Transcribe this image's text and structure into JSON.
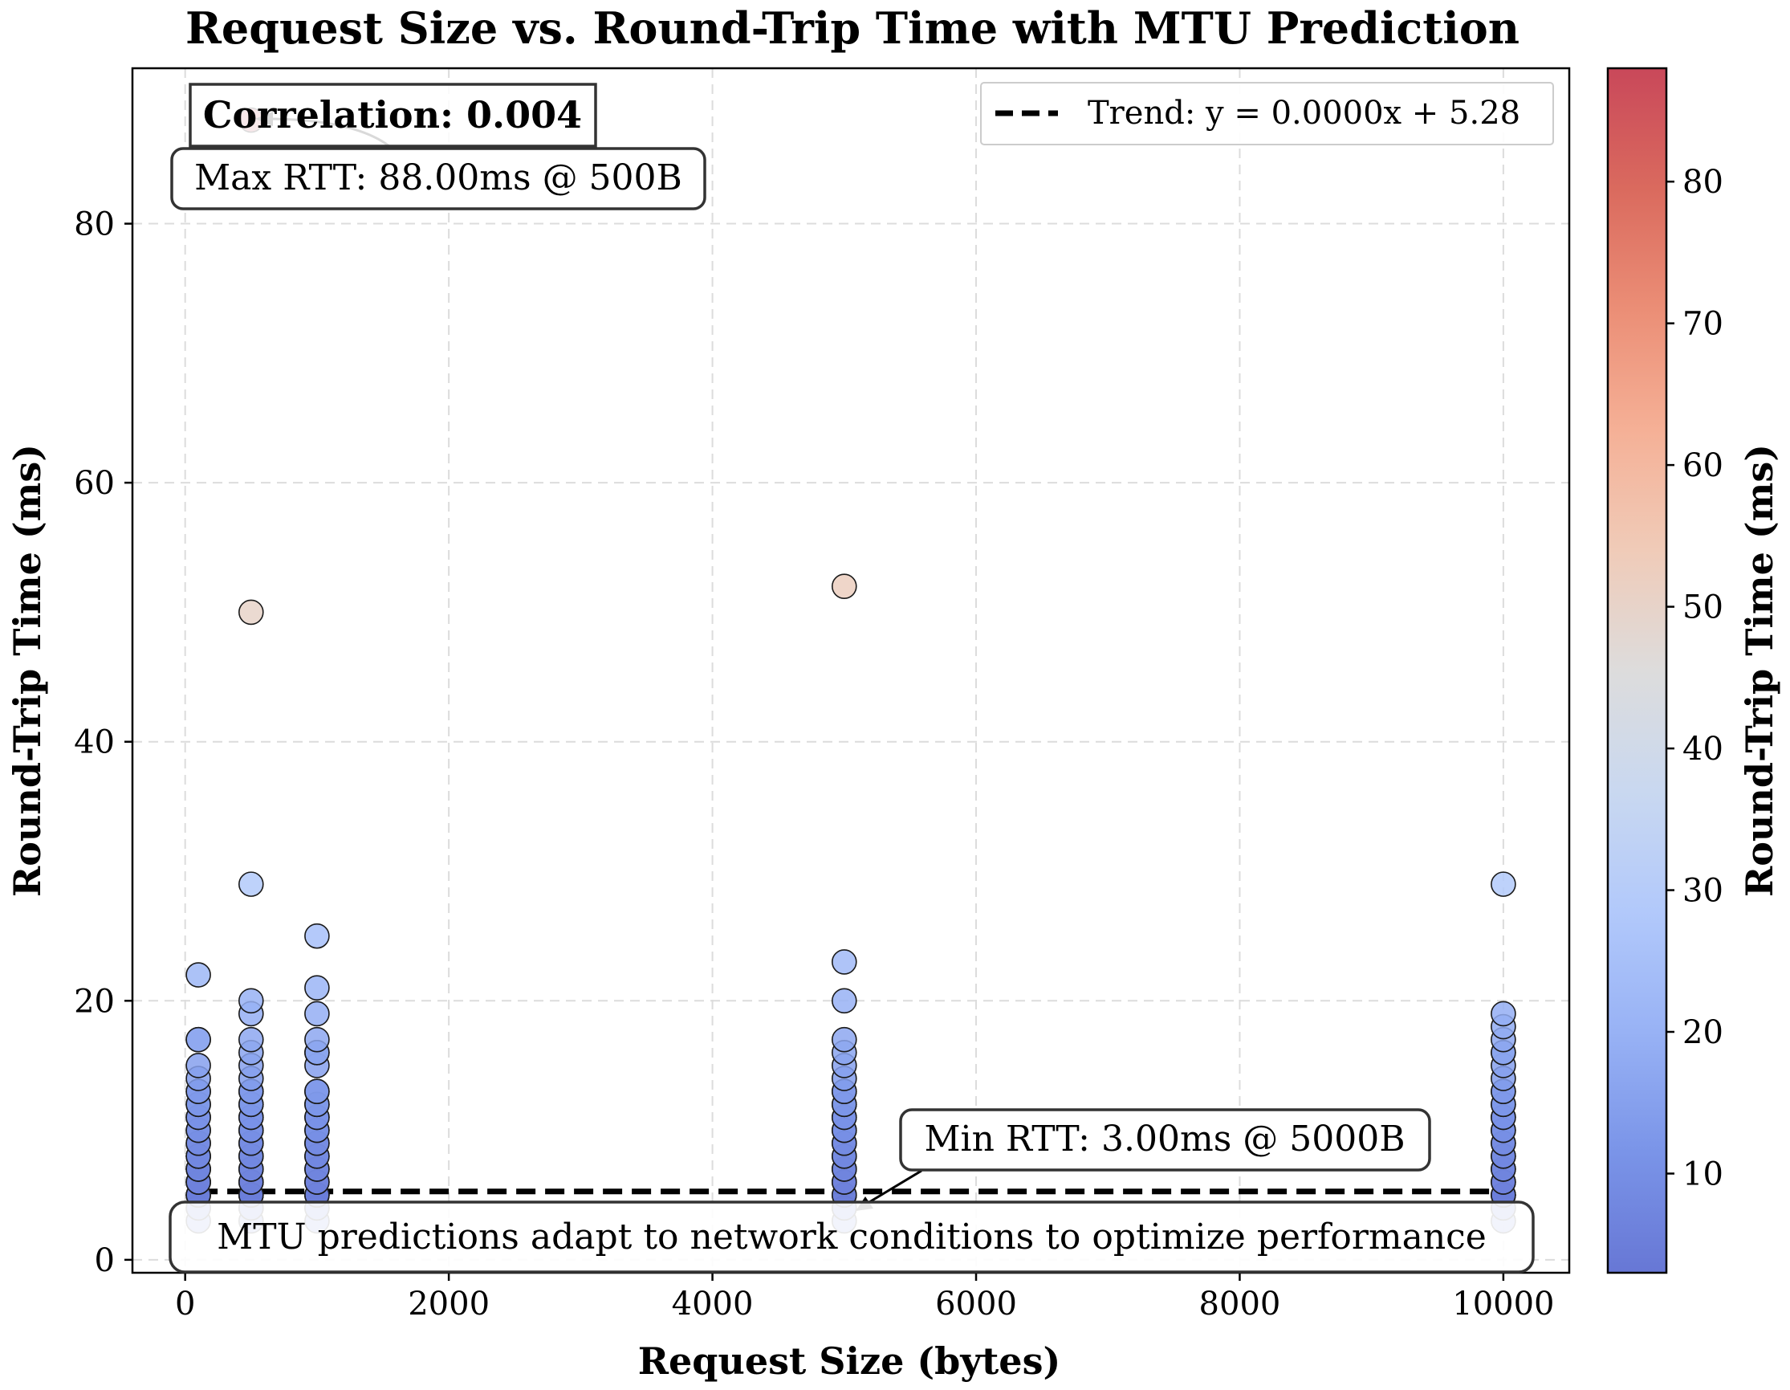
{
  "chart_data": {
    "type": "scatter",
    "title": "Request Size vs. Round-Trip Time with MTU Prediction",
    "xlabel": "Request Size (bytes)",
    "ylabel": "Round-Trip Time (ms)",
    "xlim": [
      -400,
      10500
    ],
    "ylim": [
      -1,
      92
    ],
    "xticks": [
      0,
      2000,
      4000,
      6000,
      8000,
      10000
    ],
    "yticks": [
      0,
      20,
      40,
      60,
      80
    ],
    "grid": true,
    "colorbar": {
      "label": "Round-Trip Time (ms)",
      "range": [
        3,
        88
      ],
      "ticks": [
        10,
        20,
        30,
        40,
        50,
        60,
        70,
        80
      ],
      "colormap": "coolwarm"
    },
    "legend": {
      "position": "top-right",
      "entries": [
        {
          "label": "Trend: y = 0.0000x + 5.28",
          "style": "dashed",
          "color": "#000000"
        }
      ]
    },
    "trend": {
      "slope": 0.0,
      "intercept": 5.28,
      "x_range": [
        100,
        10000
      ]
    },
    "annotations": {
      "correlation": "Correlation: 0.004",
      "max_rtt": "Max RTT: 88.00ms @ 500B",
      "min_rtt": "Min RTT: 3.00ms @ 5000B",
      "footer": "MTU predictions adapt to network conditions to optimize performance"
    },
    "series": [
      {
        "x": 100,
        "y": [
          3,
          4,
          4,
          5,
          5,
          5,
          6,
          6,
          6,
          7,
          7,
          7,
          8,
          8,
          8,
          9,
          9,
          10,
          10,
          11,
          11,
          12,
          12,
          13,
          13,
          14,
          15,
          17,
          17,
          22
        ]
      },
      {
        "x": 500,
        "y": [
          3,
          4,
          4,
          5,
          5,
          5,
          6,
          6,
          7,
          7,
          8,
          8,
          9,
          9,
          10,
          10,
          11,
          11,
          12,
          12,
          13,
          13,
          14,
          15,
          16,
          17,
          19,
          20,
          29,
          50,
          88
        ]
      },
      {
        "x": 1000,
        "y": [
          3,
          4,
          4,
          5,
          5,
          5,
          6,
          6,
          7,
          7,
          8,
          8,
          9,
          9,
          10,
          10,
          11,
          11,
          12,
          12,
          13,
          13,
          15,
          16,
          16,
          17,
          19,
          21,
          25
        ]
      },
      {
        "x": 5000,
        "y": [
          3,
          4,
          4,
          5,
          5,
          6,
          6,
          7,
          7,
          8,
          8,
          9,
          9,
          10,
          10,
          11,
          11,
          12,
          12,
          13,
          13,
          14,
          15,
          16,
          17,
          20,
          23,
          52
        ]
      },
      {
        "x": 10000,
        "y": [
          3,
          4,
          4,
          5,
          5,
          5,
          6,
          6,
          7,
          7,
          8,
          8,
          9,
          9,
          10,
          10,
          11,
          11,
          12,
          12,
          13,
          13,
          14,
          15,
          16,
          16,
          17,
          18,
          19,
          29
        ]
      }
    ],
    "colors": {
      "edge": "#1a1a1a",
      "grid": "#dcdcdc",
      "trend": "#000000"
    }
  }
}
